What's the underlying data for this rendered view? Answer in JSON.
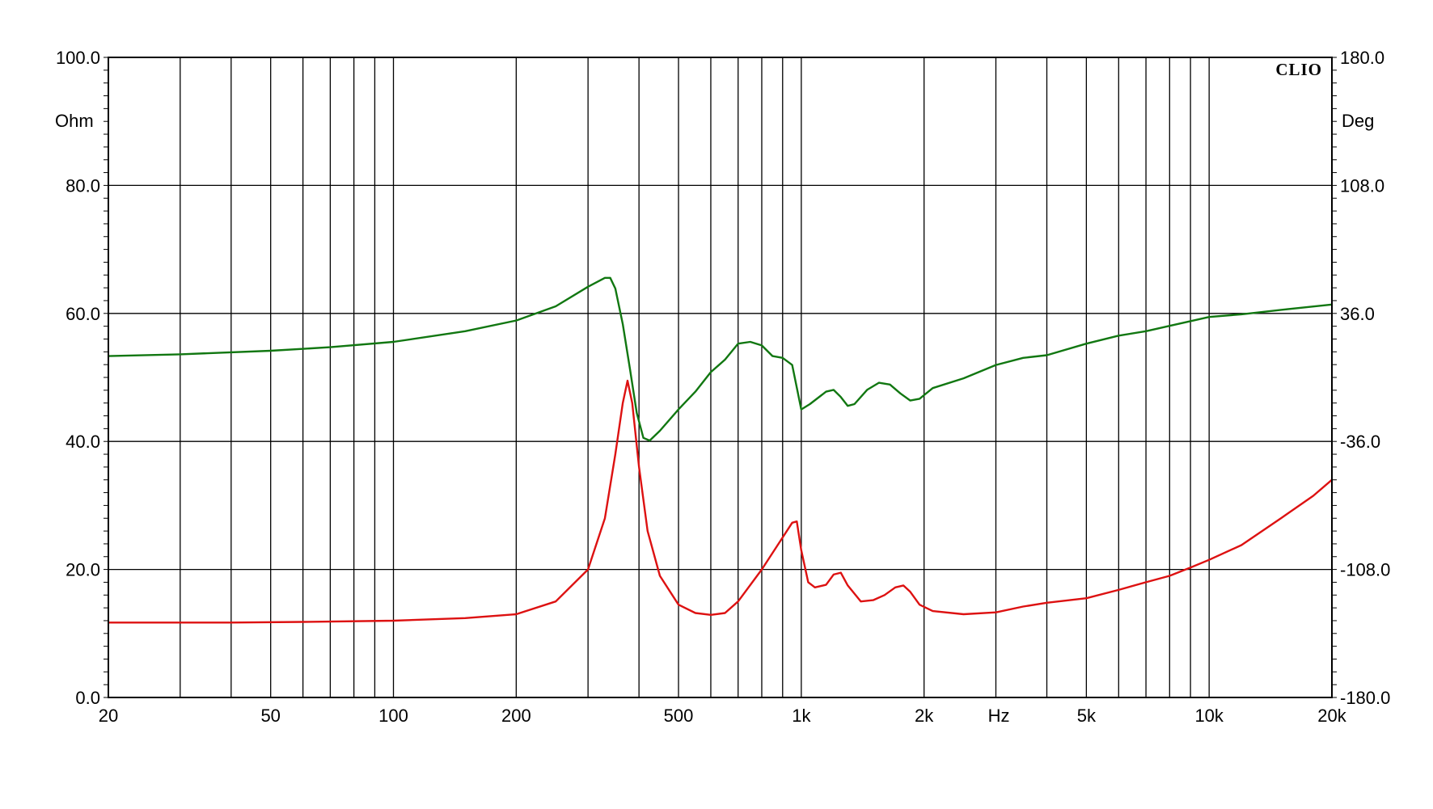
{
  "chart_data": {
    "type": "line",
    "brand": "CLIO",
    "x_unit": "Hz",
    "y_left_unit": "Ohm",
    "y_right_unit": "Deg",
    "x_scale": "log",
    "xlim": [
      20,
      20000
    ],
    "ylim_left": [
      0,
      100
    ],
    "ylim_right": [
      -180,
      180
    ],
    "grid": true,
    "x_tick_labels": [
      {
        "value": 20,
        "label": "20"
      },
      {
        "value": 50,
        "label": "50"
      },
      {
        "value": 100,
        "label": "100"
      },
      {
        "value": 200,
        "label": "200"
      },
      {
        "value": 500,
        "label": "500"
      },
      {
        "value": 1000,
        "label": "1k"
      },
      {
        "value": 2000,
        "label": "2k"
      },
      {
        "value": 5000,
        "label": "5k"
      },
      {
        "value": 10000,
        "label": "10k"
      },
      {
        "value": 20000,
        "label": "20k"
      }
    ],
    "x_gridlines": [
      30,
      40,
      50,
      60,
      70,
      80,
      90,
      100,
      200,
      300,
      400,
      500,
      600,
      700,
      800,
      900,
      1000,
      2000,
      3000,
      4000,
      5000,
      6000,
      7000,
      8000,
      9000,
      10000,
      20000
    ],
    "y_left_ticks": [
      {
        "value": 0,
        "label": "0.0"
      },
      {
        "value": 20,
        "label": "20.0"
      },
      {
        "value": 40,
        "label": "40.0"
      },
      {
        "value": 60,
        "label": "60.0"
      },
      {
        "value": 80,
        "label": "80.0"
      },
      {
        "value": 100,
        "label": "100.0"
      }
    ],
    "y_right_ticks": [
      {
        "value": -180,
        "label": "-180.0"
      },
      {
        "value": -108,
        "label": "-108.0"
      },
      {
        "value": -36,
        "label": "-36.0"
      },
      {
        "value": 36,
        "label": "36.0"
      },
      {
        "value": 108,
        "label": "108.0"
      },
      {
        "value": 180,
        "label": "180.0"
      }
    ],
    "series": [
      {
        "axis": "left",
        "color": "#dd1111",
        "points": [
          [
            20,
            11.7
          ],
          [
            40,
            11.7
          ],
          [
            60,
            11.8
          ],
          [
            100,
            12.0
          ],
          [
            150,
            12.4
          ],
          [
            200,
            13.0
          ],
          [
            250,
            15.0
          ],
          [
            300,
            20.0
          ],
          [
            330,
            28.0
          ],
          [
            350,
            38.0
          ],
          [
            365,
            46.0
          ],
          [
            375,
            49.5
          ],
          [
            385,
            46.0
          ],
          [
            400,
            36.0
          ],
          [
            420,
            26.0
          ],
          [
            450,
            19.0
          ],
          [
            500,
            14.5
          ],
          [
            550,
            13.2
          ],
          [
            600,
            12.9
          ],
          [
            650,
            13.2
          ],
          [
            700,
            15.0
          ],
          [
            800,
            20.0
          ],
          [
            900,
            25.0
          ],
          [
            950,
            27.3
          ],
          [
            975,
            27.5
          ],
          [
            1000,
            23.0
          ],
          [
            1040,
            18.0
          ],
          [
            1080,
            17.2
          ],
          [
            1150,
            17.6
          ],
          [
            1200,
            19.2
          ],
          [
            1250,
            19.5
          ],
          [
            1300,
            17.5
          ],
          [
            1400,
            15.0
          ],
          [
            1500,
            15.2
          ],
          [
            1600,
            16.0
          ],
          [
            1700,
            17.2
          ],
          [
            1780,
            17.5
          ],
          [
            1850,
            16.5
          ],
          [
            1950,
            14.5
          ],
          [
            2100,
            13.5
          ],
          [
            2500,
            13.0
          ],
          [
            3000,
            13.3
          ],
          [
            3500,
            14.2
          ],
          [
            4000,
            14.8
          ],
          [
            5000,
            15.5
          ],
          [
            6000,
            16.8
          ],
          [
            7000,
            18.0
          ],
          [
            8000,
            19.0
          ],
          [
            9000,
            20.3
          ],
          [
            10000,
            21.5
          ],
          [
            12000,
            23.8
          ],
          [
            15000,
            28.0
          ],
          [
            18000,
            31.5
          ],
          [
            20000,
            34.0
          ]
        ]
      },
      {
        "axis": "right",
        "color": "#117711",
        "points": [
          [
            20,
            12.0
          ],
          [
            30,
            13.0
          ],
          [
            50,
            15.0
          ],
          [
            70,
            17.0
          ],
          [
            100,
            20.0
          ],
          [
            150,
            26.0
          ],
          [
            200,
            32.0
          ],
          [
            250,
            40.0
          ],
          [
            300,
            51.0
          ],
          [
            330,
            56.0
          ],
          [
            340,
            56.0
          ],
          [
            350,
            50.0
          ],
          [
            365,
            30.0
          ],
          [
            380,
            5.0
          ],
          [
            395,
            -20.0
          ],
          [
            410,
            -34.0
          ],
          [
            425,
            -35.5
          ],
          [
            450,
            -30.0
          ],
          [
            500,
            -18.0
          ],
          [
            550,
            -8.0
          ],
          [
            600,
            3.0
          ],
          [
            650,
            10.0
          ],
          [
            700,
            19.0
          ],
          [
            750,
            20.0
          ],
          [
            800,
            18.0
          ],
          [
            850,
            12.0
          ],
          [
            900,
            11.0
          ],
          [
            950,
            7.0
          ],
          [
            1000,
            -18.0
          ],
          [
            1050,
            -15.0
          ],
          [
            1150,
            -8.0
          ],
          [
            1200,
            -7.0
          ],
          [
            1250,
            -11.0
          ],
          [
            1300,
            -16.0
          ],
          [
            1350,
            -15.0
          ],
          [
            1450,
            -7.0
          ],
          [
            1550,
            -3.0
          ],
          [
            1650,
            -4.0
          ],
          [
            1750,
            -9.0
          ],
          [
            1850,
            -13.0
          ],
          [
            1950,
            -12.0
          ],
          [
            2100,
            -6.0
          ],
          [
            2500,
            -0.5
          ],
          [
            3000,
            7.0
          ],
          [
            3500,
            11.0
          ],
          [
            4000,
            12.5
          ],
          [
            5000,
            19.0
          ],
          [
            6000,
            23.5
          ],
          [
            7000,
            26.0
          ],
          [
            8000,
            29.0
          ],
          [
            10000,
            34.0
          ],
          [
            12000,
            35.5
          ],
          [
            15000,
            38.0
          ],
          [
            20000,
            41.0
          ]
        ]
      }
    ]
  }
}
